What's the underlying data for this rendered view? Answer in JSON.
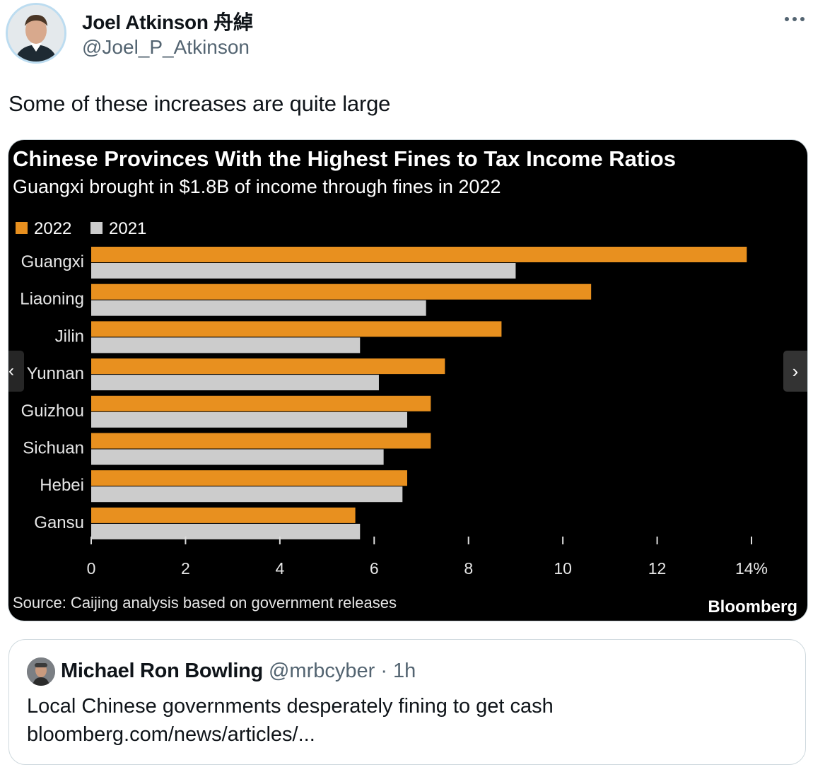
{
  "author": {
    "name": "Joel Atkinson 舟綽",
    "handle": "@Joel_P_Atkinson"
  },
  "tweet": {
    "text": "Some of these increases are quite large"
  },
  "media": {
    "nav_prev": "‹",
    "nav_next": "›",
    "brand": "Bloomberg"
  },
  "chart_data": {
    "type": "bar",
    "orientation": "horizontal",
    "title": "Chinese Provinces With the Highest Fines to Tax Income Ratios",
    "subtitle": "Guangxi brought in $1.8B of income through fines in 2022",
    "categories": [
      "Guangxi",
      "Liaoning",
      "Jilin",
      "Yunnan",
      "Guizhou",
      "Sichuan",
      "Hebei",
      "Gansu"
    ],
    "series": [
      {
        "name": "2022",
        "color": "#e8901f",
        "values": [
          13.9,
          10.6,
          8.7,
          7.5,
          7.2,
          7.2,
          6.7,
          5.6
        ]
      },
      {
        "name": "2021",
        "color": "#cccccc",
        "values": [
          9.0,
          7.1,
          5.7,
          6.1,
          6.7,
          6.2,
          6.6,
          5.7
        ]
      }
    ],
    "xlim": [
      0,
      14
    ],
    "xticks": [
      "0",
      "2",
      "4",
      "6",
      "8",
      "10",
      "12",
      "14%"
    ],
    "legend_position": "top-left",
    "grid": false,
    "source": "Source: Caijing analysis based on government releases"
  },
  "quote": {
    "name": "Michael Ron Bowling",
    "handle": "@mrbcyber",
    "meta": " · 1h",
    "text": "Local Chinese governments desperately fining to get cash",
    "link": "bloomberg.com/news/articles/..."
  }
}
